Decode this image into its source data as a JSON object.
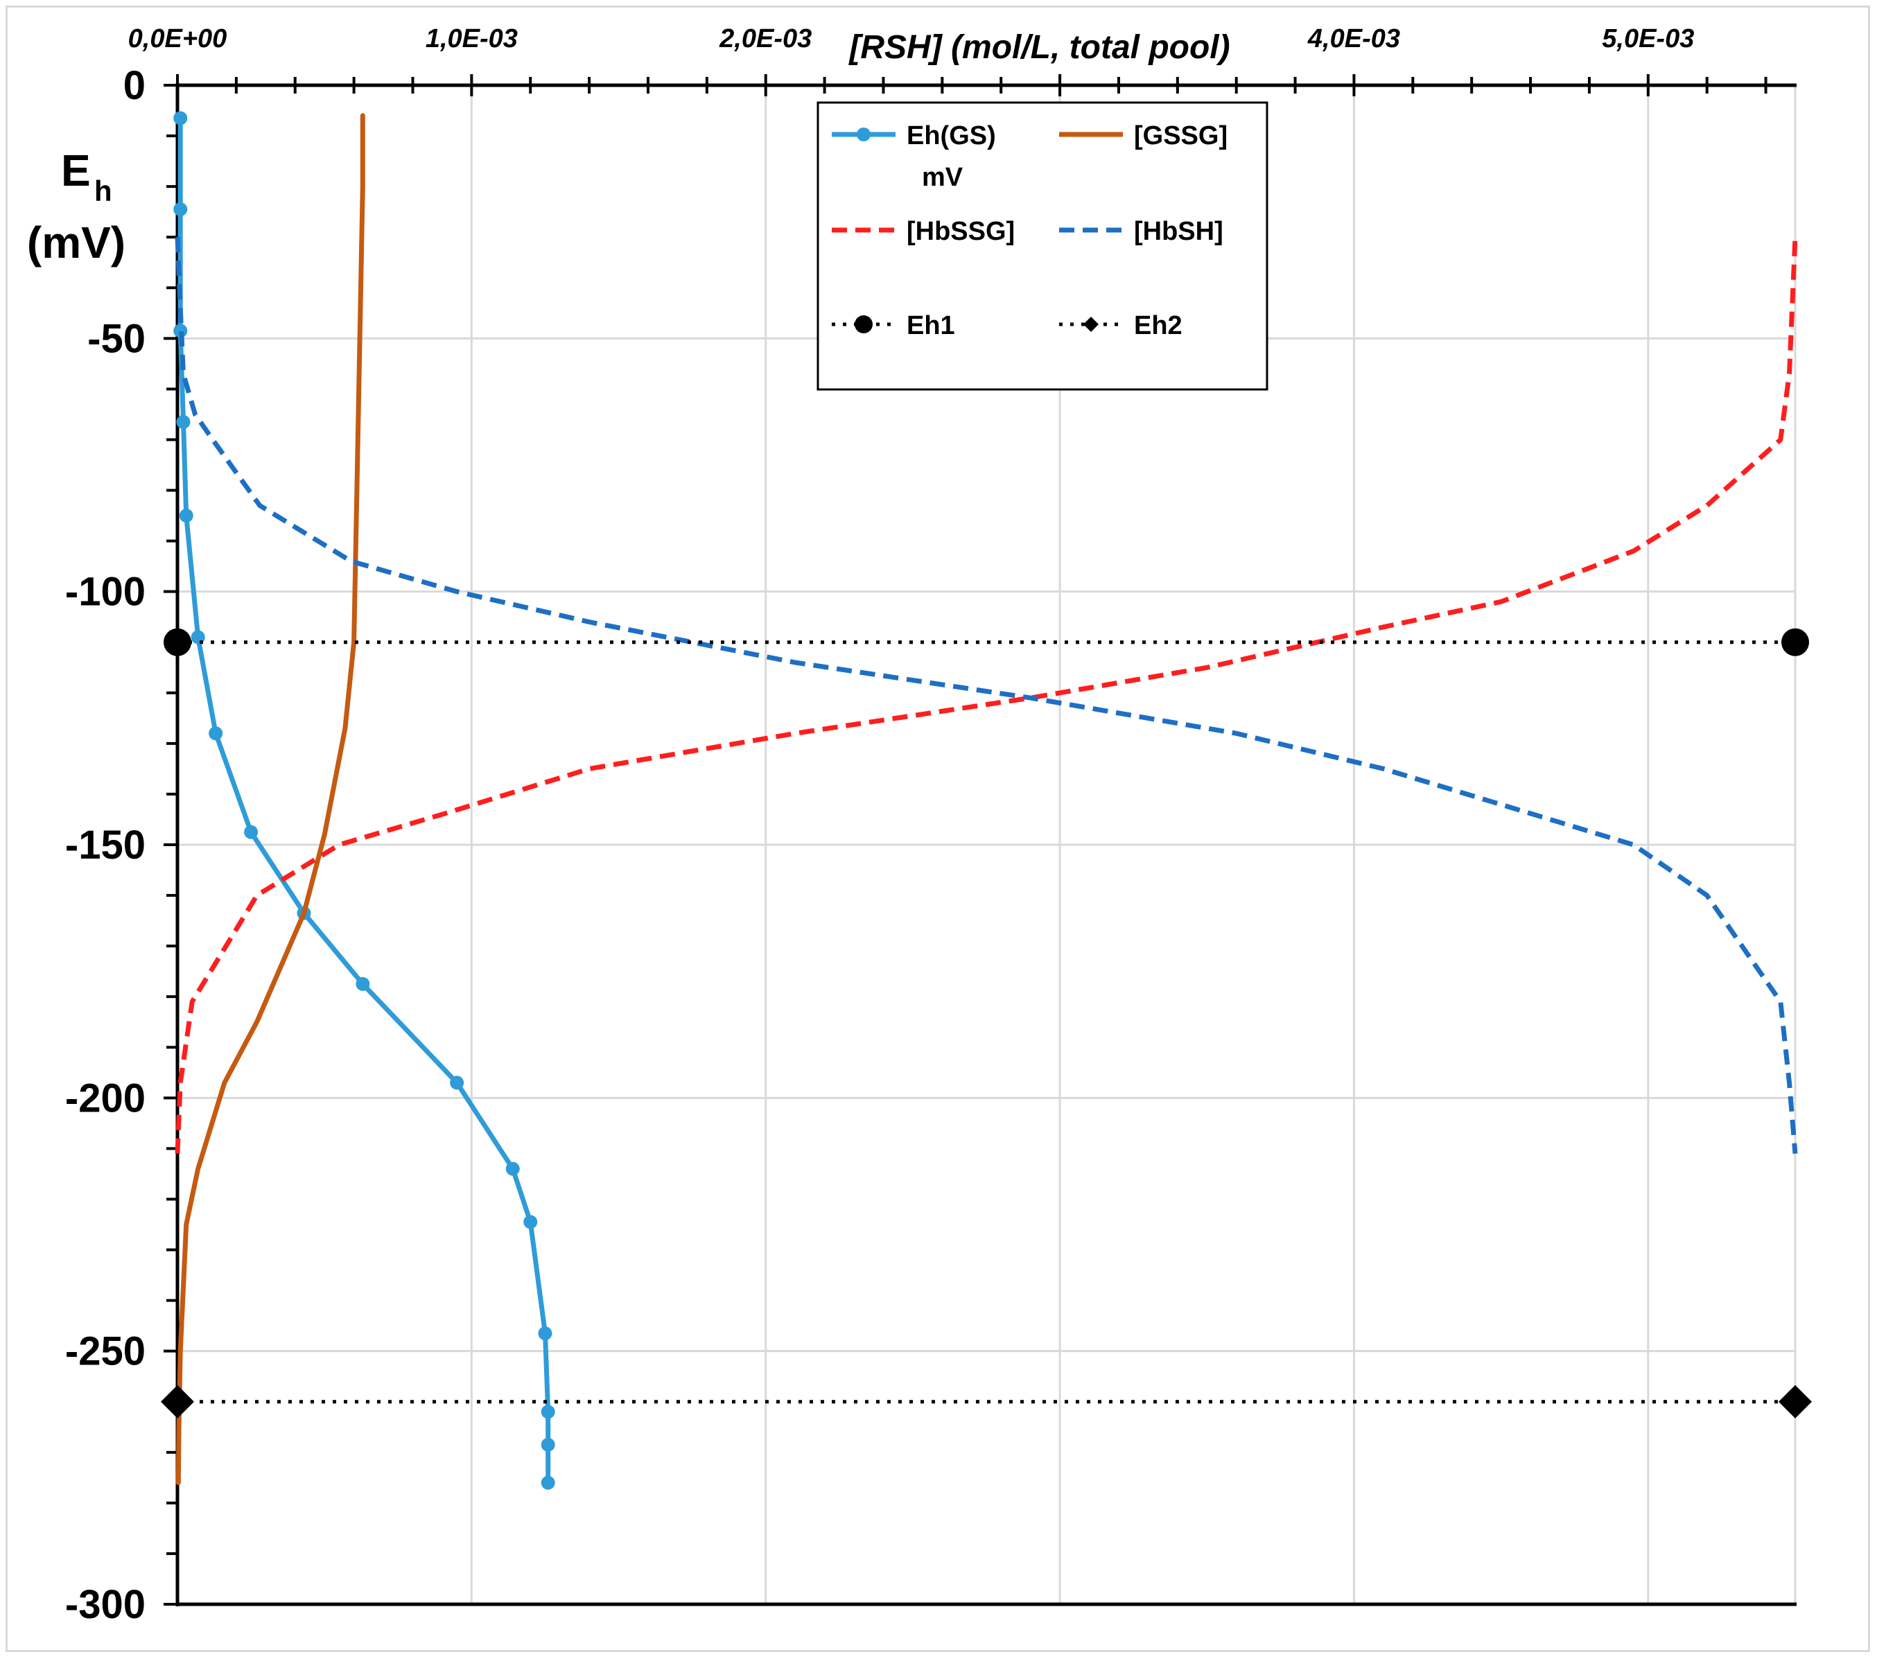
{
  "chart_data": {
    "type": "line",
    "xlabel": "[RSH] (mol/L, total pool)",
    "ylabel_main": "E",
    "ylabel_sub": "h",
    "ylabel_unit": "(mV)",
    "xlim": [
      0,
      0.0055
    ],
    "ylim": [
      -300,
      0
    ],
    "x_ticks": [
      0,
      0.001,
      0.002,
      0.003,
      0.004,
      0.005
    ],
    "x_tick_labels": [
      "0,0E+00",
      "1,0E-03",
      "2,0E-03",
      "",
      "4,0E-03",
      "5,0E-03"
    ],
    "y_ticks": [
      0,
      -50,
      -100,
      -150,
      -200,
      -250,
      -300
    ],
    "y_tick_labels": [
      "0",
      "-50",
      "-100",
      "-150",
      "-200",
      "-250",
      "-300"
    ],
    "grid": "vertical",
    "legend_position": "top-center",
    "series": [
      {
        "name": "Eh(GS) mV",
        "legend_line1": "Eh(GS)",
        "legend_line2": "mV",
        "color": "#2e9cd8",
        "style": "solid-markers",
        "points": [
          [
            1e-05,
            -6.5
          ],
          [
            1e-05,
            -24.5
          ],
          [
            1e-05,
            -48.5
          ],
          [
            2e-05,
            -66.5
          ],
          [
            3e-05,
            -85
          ],
          [
            7e-05,
            -109
          ],
          [
            0.00013,
            -128
          ],
          [
            0.00025,
            -147.5
          ],
          [
            0.00043,
            -163.5
          ],
          [
            0.00063,
            -177.5
          ],
          [
            0.00095,
            -197
          ],
          [
            0.00114,
            -214
          ],
          [
            0.0012,
            -224.5
          ],
          [
            0.00125,
            -246.5
          ],
          [
            0.00126,
            -262
          ],
          [
            0.00126,
            -268.5
          ],
          [
            0.00126,
            -276
          ]
        ]
      },
      {
        "name": "[GSSG]",
        "color": "#c55a11",
        "style": "solid",
        "points": [
          [
            0.00063,
            -6
          ],
          [
            0.00063,
            -20
          ],
          [
            0.00062,
            -50
          ],
          [
            0.00061,
            -80
          ],
          [
            0.0006,
            -110
          ],
          [
            0.00057,
            -127
          ],
          [
            0.0005,
            -148
          ],
          [
            0.00043,
            -163.5
          ],
          [
            0.00027,
            -185
          ],
          [
            0.00016,
            -197
          ],
          [
            7e-05,
            -214
          ],
          [
            3e-05,
            -225
          ],
          [
            1e-05,
            -250
          ],
          [
            5e-06,
            -265
          ],
          [
            3e-06,
            -276
          ]
        ]
      },
      {
        "name": "[HbSSG]",
        "color": "#ff1e1e",
        "style": "dashed",
        "points": [
          [
            0,
            -211
          ],
          [
            1e-05,
            -197
          ],
          [
            5e-05,
            -181
          ],
          [
            0.00027,
            -160
          ],
          [
            0.00055,
            -150
          ],
          [
            0.0009,
            -144
          ],
          [
            0.0014,
            -135
          ],
          [
            0.0021,
            -128
          ],
          [
            0.0029,
            -121
          ],
          [
            0.0035,
            -115
          ],
          [
            0.0041,
            -107
          ],
          [
            0.0045,
            -102
          ],
          [
            0.00495,
            -92
          ],
          [
            0.0052,
            -83
          ],
          [
            0.00545,
            -70
          ],
          [
            0.00548,
            -57
          ],
          [
            0.0055,
            -30
          ]
        ]
      },
      {
        "name": "[HbSH]",
        "color": "#1e6fc4",
        "style": "dashed",
        "points": [
          [
            0,
            -30
          ],
          [
            1e-05,
            -44
          ],
          [
            2e-05,
            -57
          ],
          [
            6e-05,
            -65
          ],
          [
            0.00012,
            -70
          ],
          [
            0.00028,
            -83
          ],
          [
            0.00059,
            -94
          ],
          [
            0.00095,
            -100
          ],
          [
            0.0014,
            -106
          ],
          [
            0.0021,
            -114
          ],
          [
            0.0029,
            -121
          ],
          [
            0.0036,
            -128
          ],
          [
            0.0041,
            -135
          ],
          [
            0.00495,
            -150
          ],
          [
            0.0052,
            -160
          ],
          [
            0.00545,
            -181
          ],
          [
            0.00548,
            -197
          ],
          [
            0.0055,
            -211
          ]
        ]
      },
      {
        "name": "Eh1",
        "color": "#000000",
        "style": "dotted-circle",
        "points": [
          [
            0,
            -110
          ],
          [
            0.0055,
            -110
          ]
        ]
      },
      {
        "name": "Eh2",
        "color": "#000000",
        "style": "dotted-diamond",
        "points": [
          [
            0,
            -260
          ],
          [
            0.0055,
            -260
          ]
        ]
      }
    ]
  }
}
